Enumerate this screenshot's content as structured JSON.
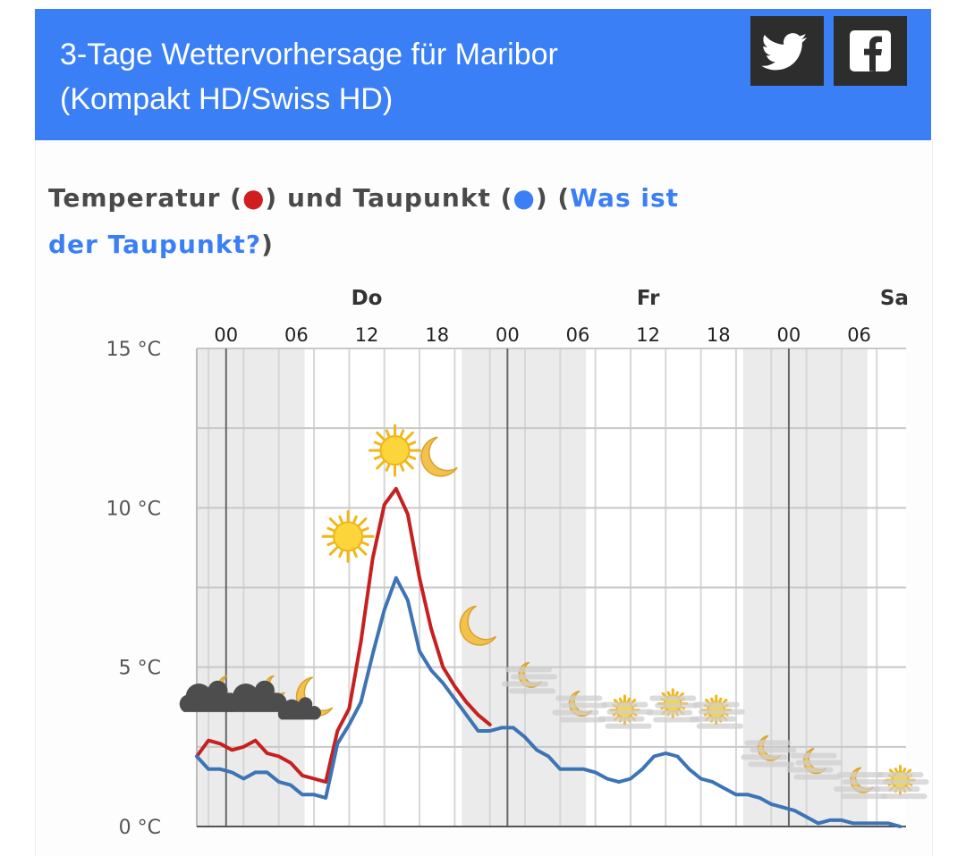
{
  "header": {
    "title_line1": "3-Tage Wettervorhersage für Maribor",
    "title_line2": "(Kompakt HD/Swiss HD)",
    "twitter_icon": "twitter-bird-icon",
    "facebook_icon": "facebook-f-icon"
  },
  "heading": {
    "part1": "Temperatur (",
    "dot1": "●",
    "part2": ") und Taupunkt (",
    "dot2": "●",
    "part3": ") (",
    "link": "Was ist der Taupunkt?",
    "part4": ")"
  },
  "colors": {
    "header_bg": "#3a7ff5",
    "temperature": "#c62020",
    "dewpoint": "#3d74b5",
    "link": "#3a7ff5"
  },
  "chart_data": {
    "type": "line",
    "x_unit": "hours",
    "x_range": [
      -2.5,
      58
    ],
    "ylim": [
      0,
      15
    ],
    "y_ticks": [
      {
        "value": 0,
        "label": "0 °C"
      },
      {
        "value": 5,
        "label": "5 °C"
      },
      {
        "value": 10,
        "label": "10 °C"
      },
      {
        "value": 15,
        "label": "15 °C"
      }
    ],
    "x_ticks": [
      {
        "hour": 0,
        "label": "00"
      },
      {
        "hour": 6,
        "label": "06"
      },
      {
        "hour": 12,
        "label": "12"
      },
      {
        "hour": 18,
        "label": "18"
      },
      {
        "hour": 24,
        "label": "00"
      },
      {
        "hour": 30,
        "label": "06"
      },
      {
        "hour": 36,
        "label": "12"
      },
      {
        "hour": 42,
        "label": "18"
      },
      {
        "hour": 48,
        "label": "00"
      },
      {
        "hour": 54,
        "label": "06"
      }
    ],
    "day_labels": [
      {
        "hour": 12,
        "label": "Do"
      },
      {
        "hour": 36,
        "label": "Fr"
      },
      {
        "hour": 57,
        "label": "Sa"
      }
    ],
    "day_lines": [
      0,
      24,
      48
    ],
    "night_bands": [
      [
        -2.5,
        6.7
      ],
      [
        20.1,
        30.7
      ],
      [
        44.1,
        54.7
      ]
    ],
    "series": [
      {
        "color": "#c62020",
        "points": [
          [
            -2.5,
            2.2
          ],
          [
            -1.5,
            2.7
          ],
          [
            -0.5,
            2.6
          ],
          [
            0.5,
            2.4
          ],
          [
            1.5,
            2.5
          ],
          [
            2.5,
            2.7
          ],
          [
            3.5,
            2.3
          ],
          [
            4.5,
            2.2
          ],
          [
            5.5,
            2.0
          ],
          [
            6.5,
            1.6
          ],
          [
            7.5,
            1.5
          ],
          [
            8.5,
            1.4
          ],
          [
            9.5,
            3.0
          ],
          [
            10.5,
            3.7
          ],
          [
            11.5,
            5.8
          ],
          [
            12.5,
            8.4
          ],
          [
            13.5,
            10.1
          ],
          [
            14.5,
            10.6
          ],
          [
            15.5,
            9.8
          ],
          [
            16.5,
            7.8
          ],
          [
            17.5,
            6.2
          ],
          [
            18.5,
            5.0
          ],
          [
            19.5,
            4.4
          ],
          [
            20.5,
            3.9
          ],
          [
            21.5,
            3.5
          ],
          [
            22.5,
            3.2
          ]
        ]
      },
      {
        "color": "#3d74b5",
        "points": [
          [
            -2.5,
            2.2
          ],
          [
            -1.5,
            1.8
          ],
          [
            -0.5,
            1.8
          ],
          [
            0.5,
            1.7
          ],
          [
            1.5,
            1.5
          ],
          [
            2.5,
            1.7
          ],
          [
            3.5,
            1.7
          ],
          [
            4.5,
            1.4
          ],
          [
            5.5,
            1.3
          ],
          [
            6.5,
            1.0
          ],
          [
            7.5,
            1.0
          ],
          [
            8.5,
            0.9
          ],
          [
            9.5,
            2.6
          ],
          [
            10.5,
            3.2
          ],
          [
            11.5,
            3.9
          ],
          [
            12.5,
            5.4
          ],
          [
            13.5,
            6.8
          ],
          [
            14.5,
            7.8
          ],
          [
            15.5,
            7.1
          ],
          [
            16.5,
            5.5
          ],
          [
            17.5,
            4.9
          ],
          [
            18.5,
            4.5
          ],
          [
            19.5,
            4.0
          ],
          [
            20.5,
            3.5
          ],
          [
            21.5,
            3.0
          ],
          [
            22.5,
            3.0
          ],
          [
            23.5,
            3.1
          ],
          [
            24.5,
            3.1
          ],
          [
            25.5,
            2.8
          ],
          [
            26.5,
            2.4
          ],
          [
            27.5,
            2.2
          ],
          [
            28.5,
            1.8
          ],
          [
            29.5,
            1.8
          ],
          [
            30.5,
            1.8
          ],
          [
            31.5,
            1.7
          ],
          [
            32.5,
            1.5
          ],
          [
            33.5,
            1.4
          ],
          [
            34.5,
            1.5
          ],
          [
            35.5,
            1.8
          ],
          [
            36.5,
            2.2
          ],
          [
            37.5,
            2.3
          ],
          [
            38.5,
            2.2
          ],
          [
            39.5,
            1.8
          ],
          [
            40.5,
            1.5
          ],
          [
            41.5,
            1.4
          ],
          [
            42.5,
            1.2
          ],
          [
            43.5,
            1.0
          ],
          [
            44.5,
            1.0
          ],
          [
            45.5,
            0.9
          ],
          [
            46.5,
            0.7
          ],
          [
            47.5,
            0.6
          ],
          [
            48.5,
            0.5
          ],
          [
            49.5,
            0.3
          ],
          [
            50.5,
            0.1
          ],
          [
            51.5,
            0.2
          ],
          [
            52.5,
            0.2
          ],
          [
            53.5,
            0.1
          ],
          [
            54.5,
            0.1
          ],
          [
            55.5,
            0.1
          ],
          [
            56.5,
            0.1
          ],
          [
            57.5,
            0.0
          ]
        ]
      }
    ],
    "weather_icons": [
      {
        "hour": -1.2,
        "value": 4.0,
        "icon": "cloud-moon-icon"
      },
      {
        "hour": 2.8,
        "value": 4.0,
        "icon": "cloud-moon-icon"
      },
      {
        "hour": 6.8,
        "value": 3.9,
        "icon": "moon-cloud-icon"
      },
      {
        "hour": 10.4,
        "value": 9.1,
        "icon": "sun-icon"
      },
      {
        "hour": 14.4,
        "value": 11.8,
        "icon": "sun-icon"
      },
      {
        "hour": 18.2,
        "value": 11.6,
        "icon": "moon-icon"
      },
      {
        "hour": 21.5,
        "value": 6.3,
        "icon": "moon-icon"
      },
      {
        "hour": 25.5,
        "value": 4.7,
        "icon": "fog-moon-icon"
      },
      {
        "hour": 29.8,
        "value": 3.8,
        "icon": "fog-moon-icon"
      },
      {
        "hour": 33.7,
        "value": 3.6,
        "icon": "fog-sun-icon"
      },
      {
        "hour": 37.8,
        "value": 3.8,
        "icon": "fog-sun-icon"
      },
      {
        "hour": 41.5,
        "value": 3.6,
        "icon": "fog-sun-icon"
      },
      {
        "hour": 45.9,
        "value": 2.4,
        "icon": "fog-moon-icon"
      },
      {
        "hour": 49.8,
        "value": 2.0,
        "icon": "fog-moon-icon"
      },
      {
        "hour": 53.8,
        "value": 1.4,
        "icon": "fog-moon-icon"
      },
      {
        "hour": 57.2,
        "value": 1.4,
        "icon": "fog-sun-icon"
      }
    ]
  }
}
